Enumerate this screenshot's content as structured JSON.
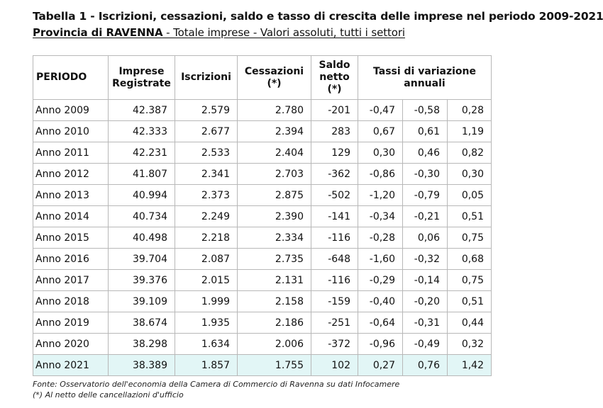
{
  "title": "Tabella 1 - Iscrizioni, cessazioni, saldo e tasso di crescita delle imprese nel periodo 2009-2021",
  "subtitle": {
    "province": "Provincia di RAVENNA",
    "rest": " - Totale imprese - Valori assoluti, tutti i settori"
  },
  "table": {
    "headers": {
      "periodo": "PERIODO",
      "imprese": "Imprese Registrate",
      "iscrizioni": "Iscrizioni",
      "cessazioni": "Cessazioni (*)",
      "saldo": "Saldo netto (*)",
      "tassi": "Tassi di variazione annuali"
    },
    "rows": [
      {
        "periodo": "Anno 2009",
        "imprese": "42.387",
        "iscrizioni": "2.579",
        "cessazioni": "2.780",
        "saldo": "-201",
        "t1": "-0,47",
        "t2": "-0,58",
        "t3": "0,28"
      },
      {
        "periodo": "Anno 2010",
        "imprese": "42.333",
        "iscrizioni": "2.677",
        "cessazioni": "2.394",
        "saldo": "283",
        "t1": "0,67",
        "t2": "0,61",
        "t3": "1,19"
      },
      {
        "periodo": "Anno 2011",
        "imprese": "42.231",
        "iscrizioni": "2.533",
        "cessazioni": "2.404",
        "saldo": "129",
        "t1": "0,30",
        "t2": "0,46",
        "t3": "0,82"
      },
      {
        "periodo": "Anno 2012",
        "imprese": "41.807",
        "iscrizioni": "2.341",
        "cessazioni": "2.703",
        "saldo": "-362",
        "t1": "-0,86",
        "t2": "-0,30",
        "t3": "0,30"
      },
      {
        "periodo": "Anno 2013",
        "imprese": "40.994",
        "iscrizioni": "2.373",
        "cessazioni": "2.875",
        "saldo": "-502",
        "t1": "-1,20",
        "t2": "-0,79",
        "t3": "0,05"
      },
      {
        "periodo": "Anno 2014",
        "imprese": "40.734",
        "iscrizioni": "2.249",
        "cessazioni": "2.390",
        "saldo": "-141",
        "t1": "-0,34",
        "t2": "-0,21",
        "t3": "0,51"
      },
      {
        "periodo": "Anno 2015",
        "imprese": "40.498",
        "iscrizioni": "2.218",
        "cessazioni": "2.334",
        "saldo": "-116",
        "t1": "-0,28",
        "t2": "0,06",
        "t3": "0,75"
      },
      {
        "periodo": "Anno 2016",
        "imprese": "39.704",
        "iscrizioni": "2.087",
        "cessazioni": "2.735",
        "saldo": "-648",
        "t1": "-1,60",
        "t2": "-0,32",
        "t3": "0,68"
      },
      {
        "periodo": "Anno 2017",
        "imprese": "39.376",
        "iscrizioni": "2.015",
        "cessazioni": "2.131",
        "saldo": "-116",
        "t1": "-0,29",
        "t2": "-0,14",
        "t3": "0,75"
      },
      {
        "periodo": "Anno 2018",
        "imprese": "39.109",
        "iscrizioni": "1.999",
        "cessazioni": "2.158",
        "saldo": "-159",
        "t1": "-0,40",
        "t2": "-0,20",
        "t3": "0,51"
      },
      {
        "periodo": "Anno 2019",
        "imprese": "38.674",
        "iscrizioni": "1.935",
        "cessazioni": "2.186",
        "saldo": "-251",
        "t1": "-0,64",
        "t2": "-0,31",
        "t3": "0,44"
      },
      {
        "periodo": "Anno 2020",
        "imprese": "38.298",
        "iscrizioni": "1.634",
        "cessazioni": "2.006",
        "saldo": "-372",
        "t1": "-0,96",
        "t2": "-0,49",
        "t3": "0,32"
      },
      {
        "periodo": "Anno 2021",
        "imprese": "38.389",
        "iscrizioni": "1.857",
        "cessazioni": "1.755",
        "saldo": "102",
        "t1": "0,27",
        "t2": "0,76",
        "t3": "1,42"
      }
    ],
    "highlight_color": "#e2f6f6"
  },
  "notes": {
    "fonte": "Fonte: Osservatorio dell'economia della Camera di Commercio di Ravenna su dati Infocamere",
    "asterisk": "(*) Al netto delle cancellazioni d'ufficio"
  }
}
